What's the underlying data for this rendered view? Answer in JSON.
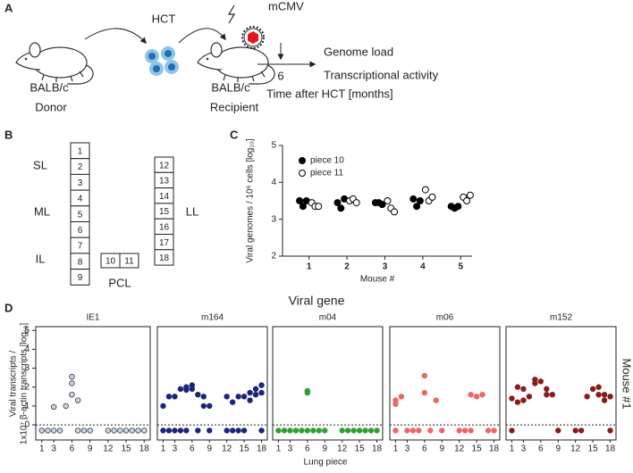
{
  "panel_a": {
    "label": "A",
    "hct": "HCT",
    "virus": "mCMV",
    "donor_strain": "BALB/c",
    "donor": "Donor",
    "recipient_strain": "BALB/c",
    "recipient": "Recipient",
    "time_point": 6,
    "readouts": [
      "Genome load",
      "Transcriptional activity"
    ],
    "time_axis": "Time after HCT [months]"
  },
  "panel_b": {
    "label": "B",
    "left_column": [
      1,
      2,
      3,
      4,
      5,
      6,
      7,
      8,
      9
    ],
    "middle_pair": [
      10,
      11
    ],
    "right_column": [
      12,
      13,
      14,
      15,
      16,
      17,
      18
    ],
    "region_labels": [
      "SL",
      "ML",
      "IL",
      "PCL",
      "LL"
    ]
  },
  "panel_c": {
    "label": "C"
  },
  "panel_d": {
    "label": "D",
    "heading": "Viral gene",
    "ylabel": [
      "Viral transcripts /",
      "1x10⁷ β-actin transcripts [log₁₀]"
    ],
    "xlabel": "Lung piece",
    "side_label": "Mouse #1"
  },
  "chart_data": [
    {
      "type": "dotplot",
      "xlabel": "Mouse #",
      "ylabel": "Viral genomes / 10⁶ cells [log₁₀]",
      "xlim": [
        0.3,
        5.3
      ],
      "ylim": [
        2,
        5
      ],
      "xticks": [
        1,
        2,
        3,
        4,
        5
      ],
      "yticks": [
        2,
        3,
        4,
        5
      ],
      "series": [
        {
          "name": "piece 10",
          "color": "#000000",
          "marker_fill": "#000000",
          "x": [
            1,
            1,
            1,
            2,
            2,
            2,
            3,
            3,
            3,
            4,
            4,
            4,
            5,
            5,
            5
          ],
          "values": [
            3.5,
            3.35,
            3.5,
            3.45,
            3.3,
            3.55,
            3.45,
            3.45,
            3.4,
            3.55,
            3.35,
            3.5,
            3.35,
            3.3,
            3.35
          ]
        },
        {
          "name": "piece 11",
          "color": "#000000",
          "marker_fill": "#ffffff",
          "x": [
            1,
            1,
            1,
            2,
            2,
            2,
            3,
            3,
            3,
            4,
            4,
            4,
            5,
            5,
            5
          ],
          "values": [
            3.45,
            3.35,
            3.35,
            3.5,
            3.55,
            3.45,
            3.5,
            3.3,
            3.2,
            3.8,
            3.5,
            3.6,
            3.6,
            3.5,
            3.65
          ]
        }
      ]
    },
    {
      "type": "scatter",
      "title": "IE1",
      "color": "#c9d8ec",
      "xlim": [
        0,
        19
      ],
      "ylim": [
        -0.8,
        5.2
      ],
      "xticks": [
        1,
        3,
        6,
        9,
        12,
        15,
        18
      ],
      "yticks": [
        0,
        1,
        2,
        3,
        4,
        5
      ],
      "reference_line": 0,
      "x": [
        1,
        2,
        3,
        3,
        4,
        5,
        6,
        6,
        6,
        7,
        7,
        8,
        9,
        12,
        13,
        14,
        15,
        16,
        17,
        18
      ],
      "values": [
        -0.3,
        -0.3,
        0.95,
        -0.3,
        -0.3,
        1.0,
        2.55,
        2.2,
        1.6,
        1.3,
        -0.3,
        -0.3,
        -0.3,
        -0.3,
        -0.3,
        -0.3,
        -0.3,
        -0.3,
        -0.3,
        -0.3
      ]
    },
    {
      "type": "scatter",
      "title": "m164",
      "color": "#1a237e",
      "xlim": [
        0,
        19
      ],
      "ylim": [
        -0.8,
        5.2
      ],
      "xticks": [
        1,
        3,
        6,
        9,
        12,
        15,
        18
      ],
      "reference_line": 0,
      "x": [
        1,
        1,
        2,
        2,
        3,
        3,
        4,
        4,
        5,
        5,
        5,
        6,
        6,
        7,
        7,
        8,
        8,
        9,
        9,
        12,
        12,
        13,
        13,
        14,
        14,
        15,
        15,
        16,
        16,
        17,
        17,
        18,
        18,
        18
      ],
      "values": [
        1.0,
        -0.3,
        1.5,
        -0.3,
        1.5,
        -0.3,
        1.9,
        -0.3,
        1.85,
        2.0,
        -0.3,
        2.1,
        1.9,
        1.6,
        -0.3,
        1.0,
        1.5,
        1.0,
        -0.3,
        1.5,
        -0.3,
        1.2,
        -0.3,
        1.5,
        -0.3,
        1.5,
        -0.3,
        1.7,
        1.3,
        1.9,
        1.6,
        2.1,
        1.7,
        -0.3
      ]
    },
    {
      "type": "scatter",
      "title": "m04",
      "color": "#2ea02e",
      "xlim": [
        0,
        19
      ],
      "ylim": [
        -0.8,
        5.2
      ],
      "xticks": [
        1,
        3,
        6,
        9,
        12,
        15,
        18
      ],
      "reference_line": 0,
      "x": [
        1,
        2,
        3,
        4,
        5,
        6,
        6,
        6,
        7,
        8,
        9,
        12,
        13,
        14,
        15,
        16,
        17,
        18
      ],
      "values": [
        -0.3,
        -0.3,
        -0.3,
        -0.3,
        -0.3,
        1.8,
        1.7,
        -0.3,
        -0.3,
        -0.3,
        -0.3,
        -0.3,
        -0.3,
        -0.3,
        -0.3,
        -0.3,
        -0.3,
        -0.3
      ]
    },
    {
      "type": "scatter",
      "title": "m06",
      "color": "#f06464",
      "xlim": [
        0,
        19
      ],
      "ylim": [
        -0.8,
        5.2
      ],
      "xticks": [
        1,
        3,
        6,
        9,
        12,
        15,
        18
      ],
      "reference_line": 0,
      "x": [
        1,
        1,
        1,
        2,
        3,
        4,
        5,
        6,
        6,
        7,
        8,
        9,
        12,
        13,
        14,
        14,
        15,
        16,
        17,
        18
      ],
      "values": [
        1.1,
        1.3,
        -0.3,
        1.5,
        -0.3,
        -0.3,
        -0.3,
        2.6,
        1.7,
        -0.3,
        1.3,
        -0.3,
        -0.3,
        -0.3,
        1.6,
        -0.3,
        1.5,
        1.6,
        -0.3,
        -0.3
      ]
    },
    {
      "type": "scatter",
      "title": "m152",
      "color": "#8b1a1a",
      "xlim": [
        0,
        19
      ],
      "ylim": [
        -0.8,
        5.2
      ],
      "xticks": [
        1,
        3,
        6,
        9,
        12,
        15,
        18
      ],
      "reference_line": 0,
      "x": [
        1,
        1,
        2,
        2,
        3,
        3,
        4,
        5,
        5,
        6,
        7,
        7,
        8,
        9,
        12,
        13,
        14,
        15,
        16,
        16,
        17,
        17,
        18,
        18
      ],
      "values": [
        1.4,
        -0.3,
        2.0,
        1.2,
        1.9,
        1.3,
        1.5,
        2.2,
        2.4,
        2.3,
        1.6,
        1.9,
        1.6,
        -0.3,
        -0.3,
        -0.3,
        1.5,
        1.9,
        2.0,
        1.6,
        1.6,
        1.3,
        1.5,
        -0.3
      ]
    }
  ]
}
